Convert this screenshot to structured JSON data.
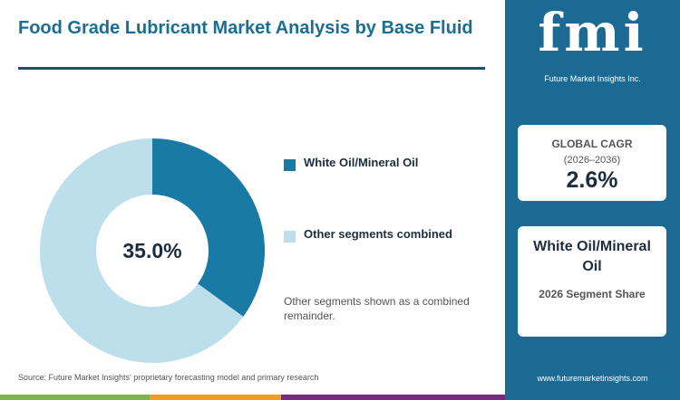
{
  "chart_data": {
    "type": "donut",
    "title": "Food Grade Lubricant Market Analysis by Base Fluid",
    "categories": [
      "White Oil/Mineral Oil",
      "Other segments combined"
    ],
    "values": [
      35,
      65
    ],
    "value_labels": [
      "35.0%",
      null
    ],
    "colors": [
      "#1a7aa6",
      "#bddfeb"
    ],
    "note": "Other segments shown as a combined remainder."
  },
  "source": "Source: Future Market Insights' proprietary forecasting model and primary research",
  "sidebar": {
    "logo": "fmi",
    "logo_subtitle": "Future Market Insights Inc.",
    "cagr_label": "GLOBAL CAGR",
    "cagr_period": "(2026–2036)",
    "cagr_value": "2.6%",
    "segment_name": "White Oil/Mineral Oil",
    "segment_caption": "2026 Segment Share",
    "url": "www.futuremarketinsights.com"
  }
}
